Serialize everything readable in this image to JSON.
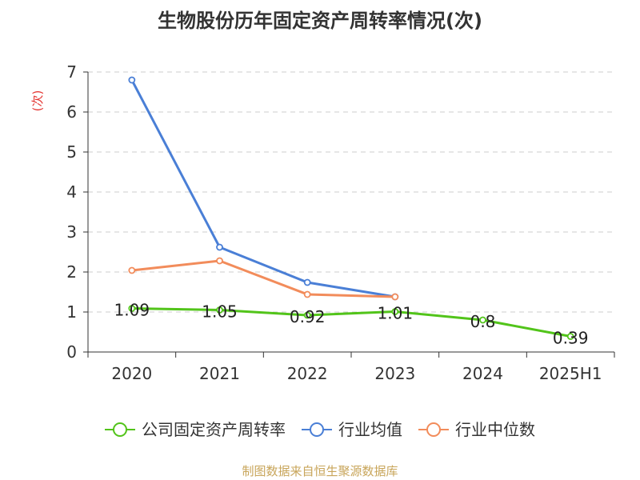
{
  "title": "生物股份历年固定资产周转率情况(次)",
  "footer": "制图数据来自恒生聚源数据库",
  "chart_data": {
    "type": "line",
    "title": "生物股份历年固定资产周转率情况(次)",
    "ylabel": "(次)",
    "xlabel": "",
    "ylim": [
      0,
      7
    ],
    "yticks": [
      "0",
      "1",
      "2",
      "3",
      "4",
      "5",
      "6",
      "7"
    ],
    "categories": [
      "2020",
      "2021",
      "2022",
      "2023",
      "2024",
      "2025H1"
    ],
    "grid": true,
    "legend_position": "bottom",
    "series": [
      {
        "name": "公司固定资产周转率",
        "color": "#52c41a",
        "values": [
          1.09,
          1.05,
          0.92,
          1.01,
          0.8,
          0.39
        ],
        "labels": [
          "1.09",
          "1.05",
          "0.92",
          "1.01",
          "0.8",
          "0.39"
        ]
      },
      {
        "name": "行业均值",
        "color": "#4a7fd6",
        "values": [
          6.8,
          2.62,
          1.74,
          1.38,
          null,
          null
        ]
      },
      {
        "name": "行业中位数",
        "color": "#f28c5b",
        "values": [
          2.04,
          2.28,
          1.44,
          1.38,
          null,
          null
        ]
      }
    ]
  }
}
